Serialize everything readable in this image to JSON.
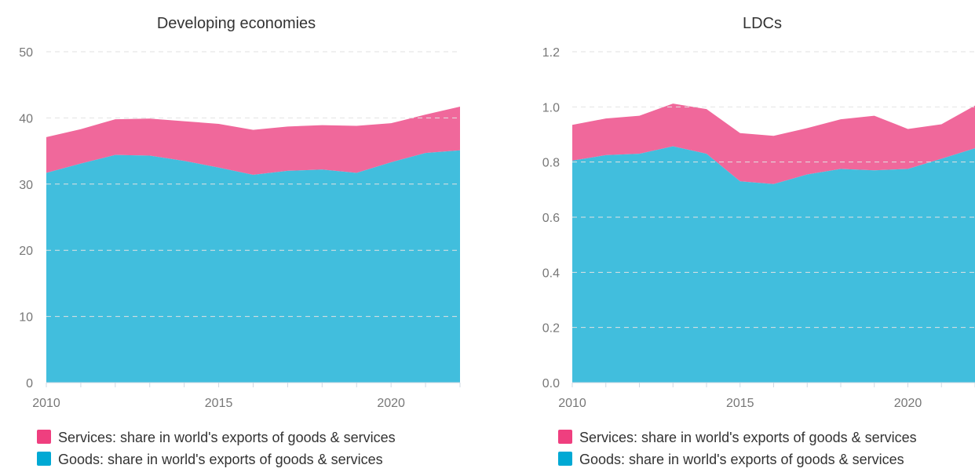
{
  "colors": {
    "services": "#f0689b",
    "goods": "#41bedd",
    "services_legend": "#ef3f7f",
    "goods_legend": "#00a9d4"
  },
  "chart_data": [
    {
      "type": "area",
      "stacked": true,
      "title": "Developing economies",
      "x": [
        2010,
        2011,
        2012,
        2013,
        2014,
        2015,
        2016,
        2017,
        2018,
        2019,
        2020,
        2021,
        2022
      ],
      "x_ticks": [
        "2010",
        "2015",
        "2020"
      ],
      "y_ticks": [
        "0",
        "10",
        "20",
        "30",
        "40",
        "50"
      ],
      "ylim": [
        0,
        50
      ],
      "grid": true,
      "legend_position": "bottom",
      "series": [
        {
          "name": "Goods: share in world's exports of goods & services",
          "values": [
            31.7,
            33.1,
            34.4,
            34.3,
            33.5,
            32.5,
            31.4,
            32.0,
            32.2,
            31.7,
            33.3,
            34.7,
            35.1
          ]
        },
        {
          "name": "Services: share in world's exports of goods & services",
          "values": [
            5.4,
            5.2,
            5.4,
            5.6,
            6.0,
            6.6,
            6.8,
            6.7,
            6.7,
            7.1,
            5.9,
            5.8,
            6.6
          ]
        }
      ]
    },
    {
      "type": "area",
      "stacked": true,
      "title": "LDCs",
      "x": [
        2010,
        2011,
        2012,
        2013,
        2014,
        2015,
        2016,
        2017,
        2018,
        2019,
        2020,
        2021,
        2022
      ],
      "x_ticks": [
        "2010",
        "2015",
        "2020"
      ],
      "y_ticks": [
        "0.0",
        "0.2",
        "0.4",
        "0.6",
        "0.8",
        "1.0",
        "1.2"
      ],
      "ylim": [
        0,
        1.2
      ],
      "grid": true,
      "legend_position": "bottom",
      "series": [
        {
          "name": "Goods: share in world's exports of goods & services",
          "values": [
            0.805,
            0.825,
            0.83,
            0.857,
            0.83,
            0.73,
            0.72,
            0.755,
            0.775,
            0.77,
            0.775,
            0.812,
            0.85
          ]
        },
        {
          "name": "Services: share in world's exports of goods & services",
          "values": [
            0.13,
            0.133,
            0.138,
            0.155,
            0.162,
            0.175,
            0.175,
            0.168,
            0.18,
            0.198,
            0.145,
            0.125,
            0.155
          ]
        }
      ]
    }
  ]
}
